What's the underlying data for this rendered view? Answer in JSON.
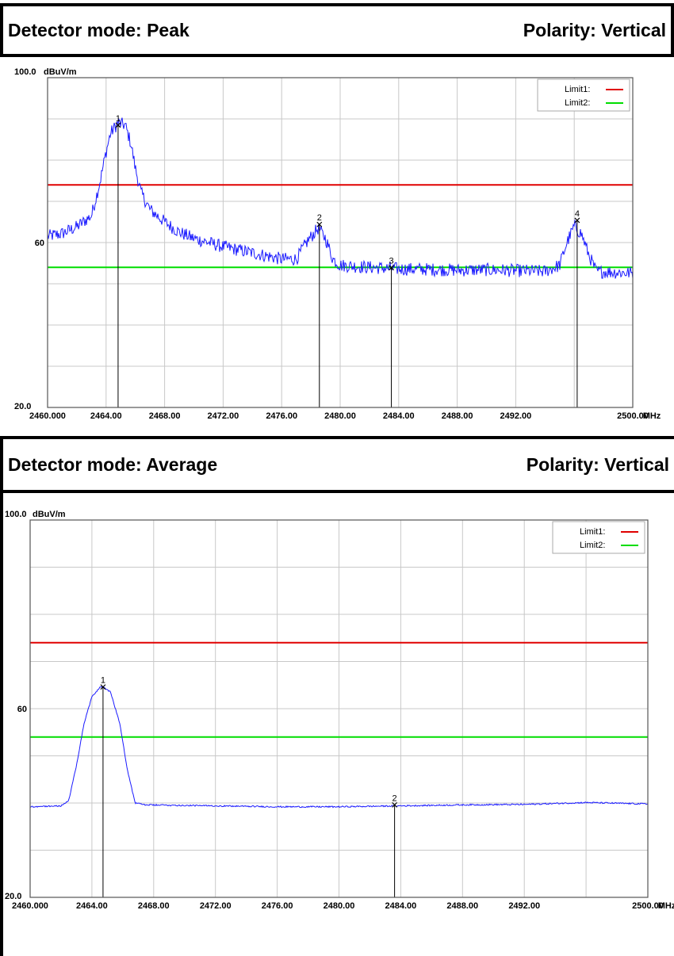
{
  "panels": [
    {
      "detector_label": "Detector mode: Peak",
      "polarity_label": "Polarity: Vertical"
    },
    {
      "detector_label": "Detector mode: Average",
      "polarity_label": "Polarity: Vertical"
    }
  ],
  "colors": {
    "trace": "#1a1aff",
    "limit1": "#e00000",
    "limit2": "#00dd00",
    "grid": "#c8c8c8"
  },
  "chart_data": [
    {
      "type": "line",
      "title": "",
      "ylabel": "dBuV/m",
      "xunit": "MHz",
      "xlim": [
        2460.0,
        2500.0
      ],
      "ylim": [
        20.0,
        100.0
      ],
      "y_tick_labels": [
        "100.0",
        "60",
        "20.0"
      ],
      "x_tick_labels": [
        "2460.000",
        "2464.00",
        "2468.00",
        "2472.00",
        "2476.00",
        "2480.00",
        "2484.00",
        "2488.00",
        "2492.00",
        "2500.00"
      ],
      "x_tick_values": [
        2460,
        2464,
        2468,
        2472,
        2476,
        2480,
        2484,
        2488,
        2492,
        2500
      ],
      "grid": true,
      "legend_position": "top-right",
      "legend": [
        {
          "name": "Limit1:",
          "value": 74.0
        },
        {
          "name": "Limit2:",
          "value": 54.0
        }
      ],
      "trace_points": [
        [
          2460.0,
          61.5
        ],
        [
          2461.0,
          62.2
        ],
        [
          2462.0,
          63.8
        ],
        [
          2463.0,
          66.5
        ],
        [
          2463.6,
          75.0
        ],
        [
          2464.0,
          82.0
        ],
        [
          2464.3,
          86.5
        ],
        [
          2464.8,
          89.0
        ],
        [
          2465.3,
          88.5
        ],
        [
          2465.7,
          84.0
        ],
        [
          2466.0,
          78.0
        ],
        [
          2466.4,
          72.0
        ],
        [
          2467.0,
          68.0
        ],
        [
          2468.0,
          65.0
        ],
        [
          2469.0,
          62.5
        ],
        [
          2470.0,
          61.0
        ],
        [
          2472.0,
          59.0
        ],
        [
          2474.0,
          57.5
        ],
        [
          2476.0,
          56.0
        ],
        [
          2477.0,
          56.0
        ],
        [
          2477.8,
          60.5
        ],
        [
          2478.5,
          63.5
        ],
        [
          2479.0,
          61.0
        ],
        [
          2479.5,
          56.0
        ],
        [
          2480.0,
          54.5
        ],
        [
          2482.0,
          54.0
        ],
        [
          2484.0,
          53.6
        ],
        [
          2486.0,
          53.5
        ],
        [
          2488.0,
          53.3
        ],
        [
          2490.0,
          53.4
        ],
        [
          2492.0,
          53.2
        ],
        [
          2494.0,
          53.0
        ],
        [
          2495.0,
          54.5
        ],
        [
          2495.5,
          60.0
        ],
        [
          2496.0,
          64.0
        ],
        [
          2496.5,
          62.0
        ],
        [
          2497.0,
          57.0
        ],
        [
          2497.5,
          53.0
        ],
        [
          2500.0,
          52.6
        ]
      ],
      "noise": 1.6,
      "markers": [
        {
          "label": "1",
          "x": 2464.82,
          "y": 88.5
        },
        {
          "label": "2",
          "x": 2478.58,
          "y": 64.4
        },
        {
          "label": "3",
          "x": 2483.5,
          "y": 53.9
        },
        {
          "label": "4",
          "x": 2496.2,
          "y": 65.4
        }
      ]
    },
    {
      "type": "line",
      "title": "",
      "ylabel": "dBuV/m",
      "xunit": "MHz",
      "xlim": [
        2460.0,
        2500.0
      ],
      "ylim": [
        20.0,
        100.0
      ],
      "y_tick_labels": [
        "100.0",
        "60",
        "20.0"
      ],
      "x_tick_labels": [
        "2460.000",
        "2464.00",
        "2468.00",
        "2472.00",
        "2476.00",
        "2480.00",
        "2484.00",
        "2488.00",
        "2492.00",
        "2500.00"
      ],
      "x_tick_values": [
        2460,
        2464,
        2468,
        2472,
        2476,
        2480,
        2484,
        2488,
        2492,
        2500
      ],
      "grid": true,
      "legend_position": "top-right",
      "legend": [
        {
          "name": "Limit1:",
          "value": 74.0
        },
        {
          "name": "Limit2:",
          "value": 54.0
        }
      ],
      "trace_points": [
        [
          2460.0,
          39.2
        ],
        [
          2462.0,
          39.4
        ],
        [
          2462.5,
          40.5
        ],
        [
          2463.0,
          48.0
        ],
        [
          2463.5,
          57.0
        ],
        [
          2464.0,
          62.5
        ],
        [
          2464.6,
          64.8
        ],
        [
          2465.2,
          63.5
        ],
        [
          2465.8,
          57.0
        ],
        [
          2466.3,
          47.0
        ],
        [
          2466.8,
          40.0
        ],
        [
          2467.5,
          39.6
        ],
        [
          2472.0,
          39.4
        ],
        [
          2476.0,
          39.2
        ],
        [
          2480.0,
          39.2
        ],
        [
          2484.0,
          39.4
        ],
        [
          2488.0,
          39.6
        ],
        [
          2492.0,
          39.7
        ],
        [
          2496.0,
          40.1
        ],
        [
          2500.0,
          39.8
        ]
      ],
      "noise": 0.15,
      "markers": [
        {
          "label": "1",
          "x": 2464.72,
          "y": 64.6
        },
        {
          "label": "2",
          "x": 2483.6,
          "y": 39.6
        }
      ]
    }
  ]
}
